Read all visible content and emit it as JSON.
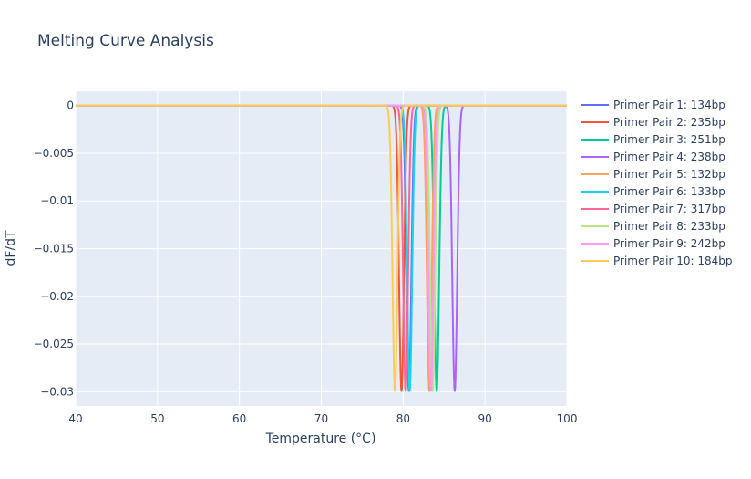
{
  "chart_data": {
    "type": "line",
    "title": "Melting Curve Analysis",
    "xlabel": "Temperature (°C)",
    "ylabel": "dF/dT",
    "xlim": [
      40,
      100
    ],
    "ylim": [
      -0.0315,
      0.0015
    ],
    "x_ticks": [
      40,
      50,
      60,
      70,
      80,
      90,
      100
    ],
    "x_tick_labels": [
      "40",
      "50",
      "60",
      "70",
      "80",
      "90",
      "100"
    ],
    "y_ticks": [
      0,
      -0.005,
      -0.01,
      -0.015,
      -0.02,
      -0.025,
      -0.03
    ],
    "y_tick_labels": [
      "0",
      "−0.005",
      "−0.01",
      "−0.015",
      "−0.02",
      "−0.025",
      "−0.03"
    ],
    "grid": true,
    "legend_position": "right",
    "series": [
      {
        "name": "Primer Pair 1: 134bp",
        "color": "#636efa",
        "trough_x": 80.7,
        "trough_y": -0.03
      },
      {
        "name": "Primer Pair 2: 235bp",
        "color": "#EF553B",
        "trough_x": 79.8,
        "trough_y": -0.03
      },
      {
        "name": "Primer Pair 3: 251bp",
        "color": "#00cc96",
        "trough_x": 84.1,
        "trough_y": -0.03
      },
      {
        "name": "Primer Pair 4: 238bp",
        "color": "#ab63fa",
        "trough_x": 86.3,
        "trough_y": -0.03
      },
      {
        "name": "Primer Pair 5: 132bp",
        "color": "#FFA15A",
        "trough_x": 83.2,
        "trough_y": -0.03
      },
      {
        "name": "Primer Pair 6: 133bp",
        "color": "#19d3f3",
        "trough_x": 80.8,
        "trough_y": -0.03
      },
      {
        "name": "Primer Pair 7: 317bp",
        "color": "#FF6692",
        "trough_x": 80.3,
        "trough_y": -0.03
      },
      {
        "name": "Primer Pair 8: 233bp",
        "color": "#B6E880",
        "trough_x": 83.6,
        "trough_y": -0.03
      },
      {
        "name": "Primer Pair 9: 242bp",
        "color": "#FF97FF",
        "trough_x": 83.4,
        "trough_y": -0.03
      },
      {
        "name": "Primer Pair 10: 184bp",
        "color": "#FECB52",
        "trough_x": 79.0,
        "trough_y": -0.03
      }
    ]
  }
}
